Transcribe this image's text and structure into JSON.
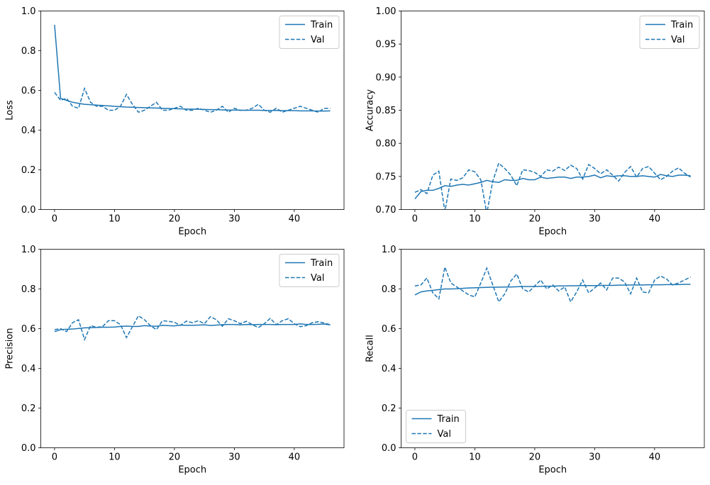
{
  "chart_data": [
    {
      "type": "line",
      "xlabel": "Epoch",
      "ylabel": "Loss",
      "xlim": [
        -2.3,
        48.3
      ],
      "ylim": [
        0,
        1.0
      ],
      "xticks": [
        0,
        10,
        20,
        30,
        40
      ],
      "yticks": [
        0.0,
        0.2,
        0.4,
        0.6,
        0.8,
        1.0
      ],
      "ytick_decimals": 1,
      "legend_loc": "upper right",
      "grid": false,
      "color": "#1f77b4",
      "series": [
        {
          "name": "Train",
          "style": "solid",
          "x": [
            0,
            1,
            2,
            3,
            4,
            5,
            6,
            7,
            8,
            9,
            10,
            11,
            12,
            13,
            14,
            15,
            16,
            17,
            18,
            19,
            20,
            21,
            22,
            23,
            24,
            25,
            26,
            27,
            28,
            29,
            30,
            31,
            32,
            33,
            34,
            35,
            36,
            37,
            38,
            39,
            40,
            41,
            42,
            43,
            44,
            45,
            46
          ],
          "values": [
            0.93,
            0.56,
            0.55,
            0.54,
            0.535,
            0.53,
            0.528,
            0.526,
            0.524,
            0.522,
            0.52,
            0.518,
            0.516,
            0.515,
            0.514,
            0.513,
            0.512,
            0.511,
            0.51,
            0.509,
            0.508,
            0.507,
            0.506,
            0.506,
            0.505,
            0.504,
            0.503,
            0.503,
            0.502,
            0.501,
            0.501,
            0.5,
            0.5,
            0.5,
            0.5,
            0.499,
            0.499,
            0.499,
            0.498,
            0.498,
            0.498,
            0.497,
            0.497,
            0.497,
            0.496,
            0.496,
            0.497
          ]
        },
        {
          "name": "Val",
          "style": "dashed",
          "x": [
            0,
            1,
            2,
            3,
            4,
            5,
            6,
            7,
            8,
            9,
            10,
            11,
            12,
            13,
            14,
            15,
            16,
            17,
            18,
            19,
            20,
            21,
            22,
            23,
            24,
            25,
            26,
            27,
            28,
            29,
            30,
            31,
            32,
            33,
            34,
            35,
            36,
            37,
            38,
            39,
            40,
            41,
            42,
            43,
            44,
            45,
            46
          ],
          "values": [
            0.59,
            0.55,
            0.56,
            0.52,
            0.51,
            0.61,
            0.54,
            0.52,
            0.52,
            0.5,
            0.5,
            0.52,
            0.58,
            0.53,
            0.49,
            0.5,
            0.52,
            0.54,
            0.5,
            0.5,
            0.51,
            0.52,
            0.5,
            0.5,
            0.51,
            0.5,
            0.49,
            0.5,
            0.52,
            0.49,
            0.51,
            0.5,
            0.5,
            0.51,
            0.53,
            0.5,
            0.49,
            0.51,
            0.49,
            0.5,
            0.51,
            0.52,
            0.51,
            0.5,
            0.49,
            0.51,
            0.51
          ]
        }
      ]
    },
    {
      "type": "line",
      "xlabel": "Epoch",
      "ylabel": "Accuracy",
      "xlim": [
        -2.3,
        48.3
      ],
      "ylim": [
        0.7,
        1.0
      ],
      "xticks": [
        0,
        10,
        20,
        30,
        40
      ],
      "yticks": [
        0.7,
        0.75,
        0.8,
        0.85,
        0.9,
        0.95,
        1.0
      ],
      "ytick_decimals": 2,
      "legend_loc": "upper right",
      "grid": false,
      "color": "#1f77b4",
      "series": [
        {
          "name": "Train",
          "style": "solid",
          "x": [
            0,
            1,
            2,
            3,
            4,
            5,
            6,
            7,
            8,
            9,
            10,
            11,
            12,
            13,
            14,
            15,
            16,
            17,
            18,
            19,
            20,
            21,
            22,
            23,
            24,
            25,
            26,
            27,
            28,
            29,
            30,
            31,
            32,
            33,
            34,
            35,
            36,
            37,
            38,
            39,
            40,
            41,
            42,
            43,
            44,
            45,
            46
          ],
          "values": [
            0.716,
            0.727,
            0.729,
            0.729,
            0.732,
            0.736,
            0.735,
            0.737,
            0.738,
            0.737,
            0.739,
            0.741,
            0.744,
            0.742,
            0.741,
            0.745,
            0.744,
            0.744,
            0.747,
            0.745,
            0.745,
            0.749,
            0.747,
            0.748,
            0.749,
            0.749,
            0.747,
            0.749,
            0.749,
            0.75,
            0.752,
            0.748,
            0.751,
            0.75,
            0.751,
            0.751,
            0.75,
            0.75,
            0.751,
            0.75,
            0.749,
            0.753,
            0.751,
            0.75,
            0.752,
            0.752,
            0.751
          ]
        },
        {
          "name": "Val",
          "style": "dashed",
          "x": [
            0,
            1,
            2,
            3,
            4,
            5,
            6,
            7,
            8,
            9,
            10,
            11,
            12,
            13,
            14,
            15,
            16,
            17,
            18,
            19,
            20,
            21,
            22,
            23,
            24,
            25,
            26,
            27,
            28,
            29,
            30,
            31,
            32,
            33,
            34,
            35,
            36,
            37,
            38,
            39,
            40,
            41,
            42,
            43,
            44,
            45,
            46
          ],
          "values": [
            0.726,
            0.73,
            0.724,
            0.752,
            0.758,
            0.697,
            0.746,
            0.744,
            0.748,
            0.76,
            0.757,
            0.745,
            0.694,
            0.743,
            0.77,
            0.762,
            0.752,
            0.736,
            0.76,
            0.759,
            0.756,
            0.75,
            0.76,
            0.758,
            0.764,
            0.759,
            0.767,
            0.762,
            0.746,
            0.768,
            0.762,
            0.754,
            0.76,
            0.752,
            0.743,
            0.756,
            0.765,
            0.749,
            0.762,
            0.765,
            0.755,
            0.745,
            0.75,
            0.758,
            0.763,
            0.755,
            0.749
          ]
        }
      ]
    },
    {
      "type": "line",
      "xlabel": "Epoch",
      "ylabel": "Precision",
      "xlim": [
        -2.3,
        48.3
      ],
      "ylim": [
        0,
        1.0
      ],
      "xticks": [
        0,
        10,
        20,
        30,
        40
      ],
      "yticks": [
        0.0,
        0.2,
        0.4,
        0.6,
        0.8,
        1.0
      ],
      "ytick_decimals": 1,
      "legend_loc": "upper right",
      "grid": false,
      "color": "#1f77b4",
      "series": [
        {
          "name": "Train",
          "style": "solid",
          "x": [
            0,
            1,
            2,
            3,
            4,
            5,
            6,
            7,
            8,
            9,
            10,
            11,
            12,
            13,
            14,
            15,
            16,
            17,
            18,
            19,
            20,
            21,
            22,
            23,
            24,
            25,
            26,
            27,
            28,
            29,
            30,
            31,
            32,
            33,
            34,
            35,
            36,
            37,
            38,
            39,
            40,
            41,
            42,
            43,
            44,
            45,
            46
          ],
          "values": [
            0.585,
            0.595,
            0.597,
            0.598,
            0.601,
            0.604,
            0.605,
            0.606,
            0.607,
            0.607,
            0.608,
            0.611,
            0.613,
            0.611,
            0.611,
            0.615,
            0.613,
            0.612,
            0.617,
            0.615,
            0.614,
            0.618,
            0.617,
            0.617,
            0.618,
            0.619,
            0.616,
            0.618,
            0.62,
            0.621,
            0.621,
            0.619,
            0.621,
            0.62,
            0.621,
            0.621,
            0.621,
            0.62,
            0.621,
            0.621,
            0.621,
            0.624,
            0.621,
            0.621,
            0.622,
            0.623,
            0.619
          ]
        },
        {
          "name": "Val",
          "style": "dashed",
          "x": [
            0,
            1,
            2,
            3,
            4,
            5,
            6,
            7,
            8,
            9,
            10,
            11,
            12,
            13,
            14,
            15,
            16,
            17,
            18,
            19,
            20,
            21,
            22,
            23,
            24,
            25,
            26,
            27,
            28,
            29,
            30,
            31,
            32,
            33,
            34,
            35,
            36,
            37,
            38,
            39,
            40,
            41,
            42,
            43,
            44,
            45,
            46
          ],
          "values": [
            0.595,
            0.6,
            0.585,
            0.63,
            0.645,
            0.545,
            0.615,
            0.607,
            0.61,
            0.64,
            0.64,
            0.62,
            0.555,
            0.61,
            0.665,
            0.645,
            0.615,
            0.595,
            0.64,
            0.637,
            0.632,
            0.616,
            0.638,
            0.63,
            0.64,
            0.625,
            0.66,
            0.645,
            0.612,
            0.65,
            0.64,
            0.625,
            0.637,
            0.62,
            0.605,
            0.625,
            0.652,
            0.62,
            0.64,
            0.65,
            0.625,
            0.61,
            0.615,
            0.63,
            0.635,
            0.628,
            0.62
          ]
        }
      ]
    },
    {
      "type": "line",
      "xlabel": "Epoch",
      "ylabel": "Recall",
      "xlim": [
        -2.3,
        48.3
      ],
      "ylim": [
        0,
        1.0
      ],
      "xticks": [
        0,
        10,
        20,
        30,
        40
      ],
      "yticks": [
        0.0,
        0.2,
        0.4,
        0.6,
        0.8,
        1.0
      ],
      "ytick_decimals": 1,
      "legend_loc": "lower left",
      "grid": false,
      "color": "#1f77b4",
      "series": [
        {
          "name": "Train",
          "style": "solid",
          "x": [
            0,
            1,
            2,
            3,
            4,
            5,
            6,
            7,
            8,
            9,
            10,
            11,
            12,
            13,
            14,
            15,
            16,
            17,
            18,
            19,
            20,
            21,
            22,
            23,
            24,
            25,
            26,
            27,
            28,
            29,
            30,
            31,
            32,
            33,
            34,
            35,
            36,
            37,
            38,
            39,
            40,
            41,
            42,
            43,
            44,
            45,
            46
          ],
          "values": [
            0.77,
            0.785,
            0.79,
            0.793,
            0.797,
            0.8,
            0.8,
            0.801,
            0.803,
            0.805,
            0.806,
            0.807,
            0.808,
            0.809,
            0.809,
            0.81,
            0.81,
            0.811,
            0.812,
            0.812,
            0.812,
            0.813,
            0.814,
            0.814,
            0.815,
            0.815,
            0.816,
            0.816,
            0.817,
            0.817,
            0.817,
            0.818,
            0.818,
            0.818,
            0.819,
            0.819,
            0.82,
            0.82,
            0.82,
            0.821,
            0.821,
            0.821,
            0.822,
            0.822,
            0.822,
            0.823,
            0.823
          ]
        },
        {
          "name": "Val",
          "style": "dashed",
          "x": [
            0,
            1,
            2,
            3,
            4,
            5,
            6,
            7,
            8,
            9,
            10,
            11,
            12,
            13,
            14,
            15,
            16,
            17,
            18,
            19,
            20,
            21,
            22,
            23,
            24,
            25,
            26,
            27,
            28,
            29,
            30,
            31,
            32,
            33,
            34,
            35,
            36,
            37,
            38,
            39,
            40,
            41,
            42,
            43,
            44,
            45,
            46
          ],
          "values": [
            0.815,
            0.82,
            0.855,
            0.78,
            0.75,
            0.91,
            0.83,
            0.81,
            0.79,
            0.77,
            0.76,
            0.83,
            0.905,
            0.82,
            0.735,
            0.775,
            0.84,
            0.875,
            0.8,
            0.785,
            0.815,
            0.845,
            0.8,
            0.82,
            0.79,
            0.81,
            0.735,
            0.785,
            0.845,
            0.78,
            0.805,
            0.83,
            0.795,
            0.855,
            0.855,
            0.835,
            0.775,
            0.855,
            0.785,
            0.78,
            0.845,
            0.865,
            0.85,
            0.82,
            0.83,
            0.845,
            0.86
          ]
        }
      ]
    }
  ]
}
